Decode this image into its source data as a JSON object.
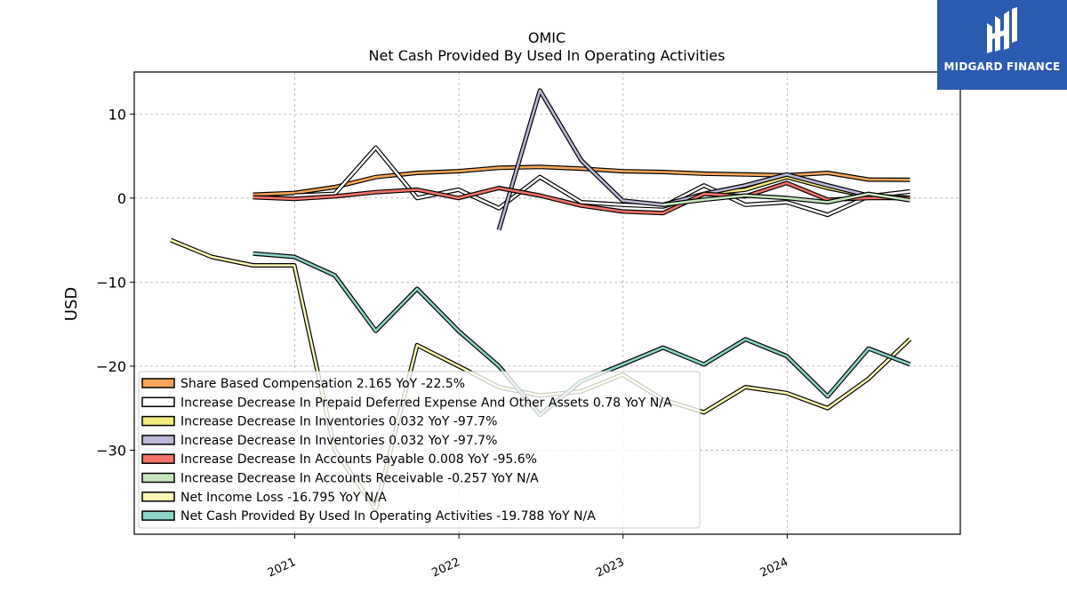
{
  "brand": {
    "name": "MIDGARD FINANCE",
    "bg_color": "#2b5bb0"
  },
  "chart_data": {
    "type": "line",
    "title": "OMIC",
    "subtitle": "Net Cash Provided By Used In Operating Activities",
    "ylabel": "USD",
    "xlabel": "",
    "ylim": [
      -40,
      15
    ],
    "yticks": [
      10,
      0,
      -10,
      -20,
      -30
    ],
    "ytick_labels": [
      "10",
      "0",
      "−10",
      "−20",
      "−30"
    ],
    "xlim": [
      "2020-01-10",
      "2025-01-20"
    ],
    "xticks": [
      "2021-01-01",
      "2022-01-01",
      "2023-01-01",
      "2024-01-01"
    ],
    "xtick_labels": [
      "2021",
      "2022",
      "2023",
      "2024"
    ],
    "grid": true,
    "legend_position": "lower-left",
    "series": [
      {
        "name": "Share Based Compensation",
        "legend": "Share Based Compensation  2.165 YoY -22.5%",
        "color": "#f9a65a",
        "x": [
          "2020-09-30",
          "2020-12-31",
          "2021-03-31",
          "2021-06-30",
          "2021-09-30",
          "2021-12-31",
          "2022-03-31",
          "2022-06-30",
          "2022-09-30",
          "2022-12-31",
          "2023-03-31",
          "2023-06-30",
          "2023-09-30",
          "2023-12-31",
          "2024-03-31",
          "2024-06-30",
          "2024-09-30"
        ],
        "y": [
          0.4,
          0.6,
          1.3,
          2.5,
          3.0,
          3.2,
          3.6,
          3.7,
          3.5,
          3.2,
          3.1,
          2.9,
          2.8,
          2.7,
          3.0,
          2.2,
          2.165
        ]
      },
      {
        "name": "Increase Decrease In Prepaid Deferred Expense And Other Assets",
        "legend": "Increase Decrease In Prepaid Deferred Expense And Other Assets  0.78 YoY N/A",
        "color": "#ffffff",
        "x": [
          "2020-12-31",
          "2021-03-31",
          "2021-06-30",
          "2021-09-30",
          "2021-12-31",
          "2022-03-31",
          "2022-06-30",
          "2022-09-30",
          "2022-12-31",
          "2023-03-31",
          "2023-06-30",
          "2023-09-30",
          "2023-12-31",
          "2024-03-31",
          "2024-06-30",
          "2024-09-30"
        ],
        "y": [
          0.3,
          0.5,
          6.0,
          0.0,
          1.0,
          -1.2,
          2.5,
          -0.5,
          -0.8,
          -1.0,
          1.5,
          -0.8,
          -0.5,
          -2.0,
          0.2,
          0.78
        ]
      },
      {
        "name": "Increase Decrease In Inventories",
        "legend": "Increase Decrease In Inventories  0.032 YoY -97.7%",
        "color": "#f4ed7c",
        "x": [
          "2023-03-31",
          "2023-06-30",
          "2023-09-30",
          "2023-12-31",
          "2024-03-31",
          "2024-06-30",
          "2024-09-30"
        ],
        "y": [
          -1.0,
          0.5,
          1.0,
          2.5,
          1.2,
          0.2,
          0.032
        ]
      },
      {
        "name": "Increase Decrease In Inventories",
        "legend": "Increase Decrease In Inventories  0.032 YoY -97.7%",
        "color": "#bcb8d8",
        "x": [
          "2022-03-31",
          "2022-06-30",
          "2022-09-30",
          "2022-12-31",
          "2023-03-31",
          "2023-06-30",
          "2023-09-30",
          "2023-12-31",
          "2024-03-31",
          "2024-06-30",
          "2024-09-30"
        ],
        "y": [
          -3.8,
          12.8,
          4.5,
          -0.3,
          -0.8,
          0.5,
          1.5,
          2.8,
          1.5,
          0.3,
          0.032
        ]
      },
      {
        "name": "Increase Decrease In Accounts Payable",
        "legend": "Increase Decrease In Accounts Payable  0.008 YoY -95.6%",
        "color": "#f4726a",
        "x": [
          "2020-09-30",
          "2020-12-31",
          "2021-03-31",
          "2021-06-30",
          "2021-09-30",
          "2021-12-31",
          "2022-03-31",
          "2022-06-30",
          "2022-09-30",
          "2022-12-31",
          "2023-03-31",
          "2023-06-30",
          "2023-09-30",
          "2023-12-31",
          "2024-03-31",
          "2024-06-30",
          "2024-09-30"
        ],
        "y": [
          0.1,
          -0.1,
          0.2,
          0.7,
          1.0,
          0.0,
          1.2,
          0.3,
          -0.9,
          -1.6,
          -1.8,
          0.5,
          0.2,
          1.8,
          -0.2,
          0.0,
          0.008
        ]
      },
      {
        "name": "Increase Decrease In Accounts Receivable",
        "legend": "Increase Decrease In Accounts Receivable  -0.257 YoY N/A",
        "color": "#c8e6be",
        "x": [
          "2023-03-31",
          "2023-06-30",
          "2023-09-30",
          "2023-12-31",
          "2024-03-31",
          "2024-06-30",
          "2024-09-30"
        ],
        "y": [
          -0.8,
          -0.2,
          0.3,
          0.0,
          -0.5,
          0.5,
          -0.257
        ]
      },
      {
        "name": "Net Income Loss",
        "legend": "Net Income Loss  -16.795 YoY N/A",
        "color": "#fcf8b4",
        "x": [
          "2020-03-31",
          "2020-06-30",
          "2020-09-30",
          "2020-12-31",
          "2021-03-31",
          "2021-06-30",
          "2021-09-30",
          "2021-12-31",
          "2022-03-31",
          "2022-06-30",
          "2022-09-30",
          "2022-12-31",
          "2023-03-31",
          "2023-06-30",
          "2023-09-30",
          "2023-12-31",
          "2024-03-31",
          "2024-06-30",
          "2024-09-30"
        ],
        "y": [
          -5.0,
          -7.0,
          -8.0,
          -8.0,
          -30.0,
          -37.0,
          -17.5,
          -20.0,
          -22.5,
          -23.5,
          -23.0,
          -21.0,
          -24.0,
          -25.5,
          -22.5,
          -23.2,
          -25.0,
          -21.5,
          -16.795
        ]
      },
      {
        "name": "Net Cash Provided By Used In Operating Activities",
        "legend": "Net Cash Provided By Used In Operating Activities  -19.788 YoY N/A",
        "color": "#8dd3c7",
        "x": [
          "2020-09-30",
          "2020-12-31",
          "2021-03-31",
          "2021-06-30",
          "2021-09-30",
          "2021-12-31",
          "2022-03-31",
          "2022-06-30",
          "2022-09-30",
          "2022-12-31",
          "2023-03-31",
          "2023-06-30",
          "2023-09-30",
          "2023-12-31",
          "2024-03-31",
          "2024-06-30",
          "2024-09-30"
        ],
        "y": [
          -6.6,
          -7.0,
          -9.2,
          -15.8,
          -10.8,
          -15.8,
          -20.0,
          -25.8,
          -21.8,
          -19.8,
          -17.8,
          -19.8,
          -16.8,
          -18.8,
          -23.6,
          -17.9,
          -19.788
        ]
      }
    ],
    "legend_order": [
      0,
      1,
      2,
      3,
      4,
      5,
      6,
      7
    ]
  }
}
